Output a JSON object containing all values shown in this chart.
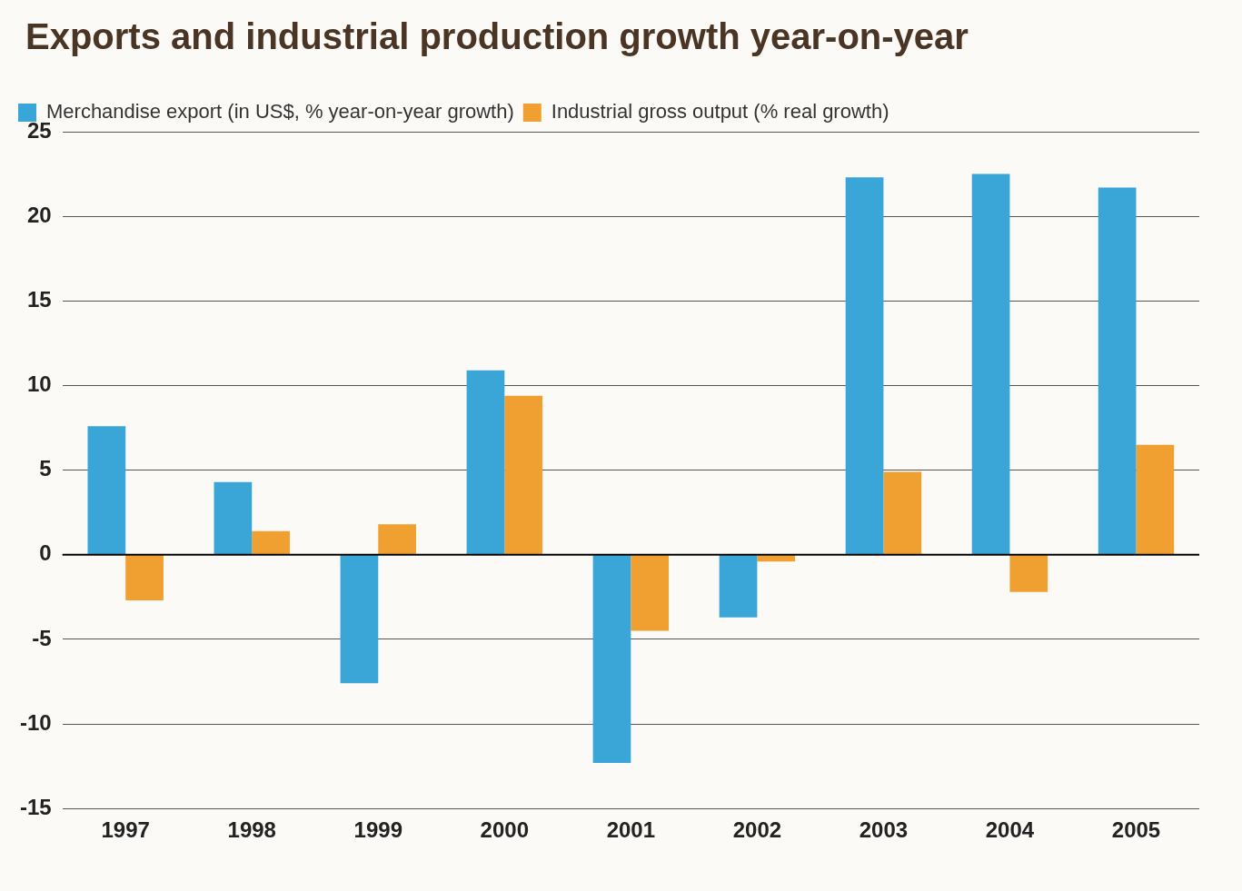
{
  "chart_data": {
    "type": "bar",
    "title": "Exports and industrial production growth year-on-year",
    "categories": [
      "1997",
      "1998",
      "1999",
      "2000",
      "2001",
      "2002",
      "2003",
      "2004",
      "2005"
    ],
    "series": [
      {
        "name": "Merchandise export (in US$, % year-on-year growth)",
        "color": "#3aa6d8",
        "values": [
          7.6,
          4.3,
          -7.6,
          10.9,
          -12.3,
          -3.7,
          22.3,
          22.5,
          21.7
        ]
      },
      {
        "name": "Industrial gross output (% real growth)",
        "color": "#f0a030",
        "values": [
          -2.7,
          1.4,
          1.8,
          9.4,
          -4.5,
          -0.4,
          4.9,
          -2.2,
          6.5
        ]
      }
    ],
    "ylim": [
      -15,
      25
    ],
    "yticks": [
      -15,
      -10,
      -5,
      0,
      5,
      10,
      15,
      20,
      25
    ],
    "grid": "y",
    "legend": "top left"
  }
}
